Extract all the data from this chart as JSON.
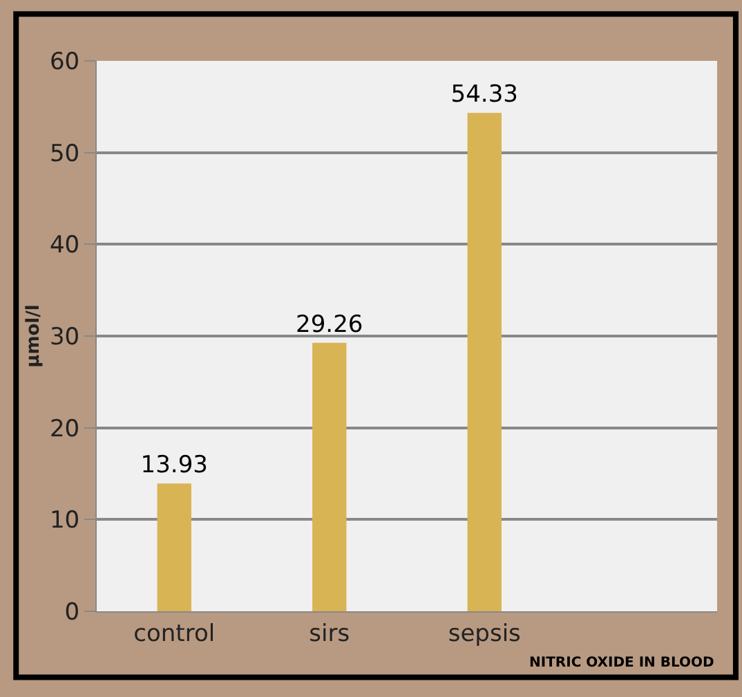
{
  "chart_data": {
    "type": "bar",
    "categories": [
      "control",
      "sirs",
      "sepsis"
    ],
    "values": [
      13.93,
      29.26,
      54.33
    ],
    "color": "#d9b455",
    "ylabel": "µmol/l",
    "xlabel": "NITRIC OXIDE IN BLOOD",
    "ylim": [
      0,
      60
    ],
    "yticks": [
      0,
      10,
      20,
      30,
      40,
      50,
      60
    ],
    "grid": "y",
    "data_labels": true,
    "legend": false
  }
}
